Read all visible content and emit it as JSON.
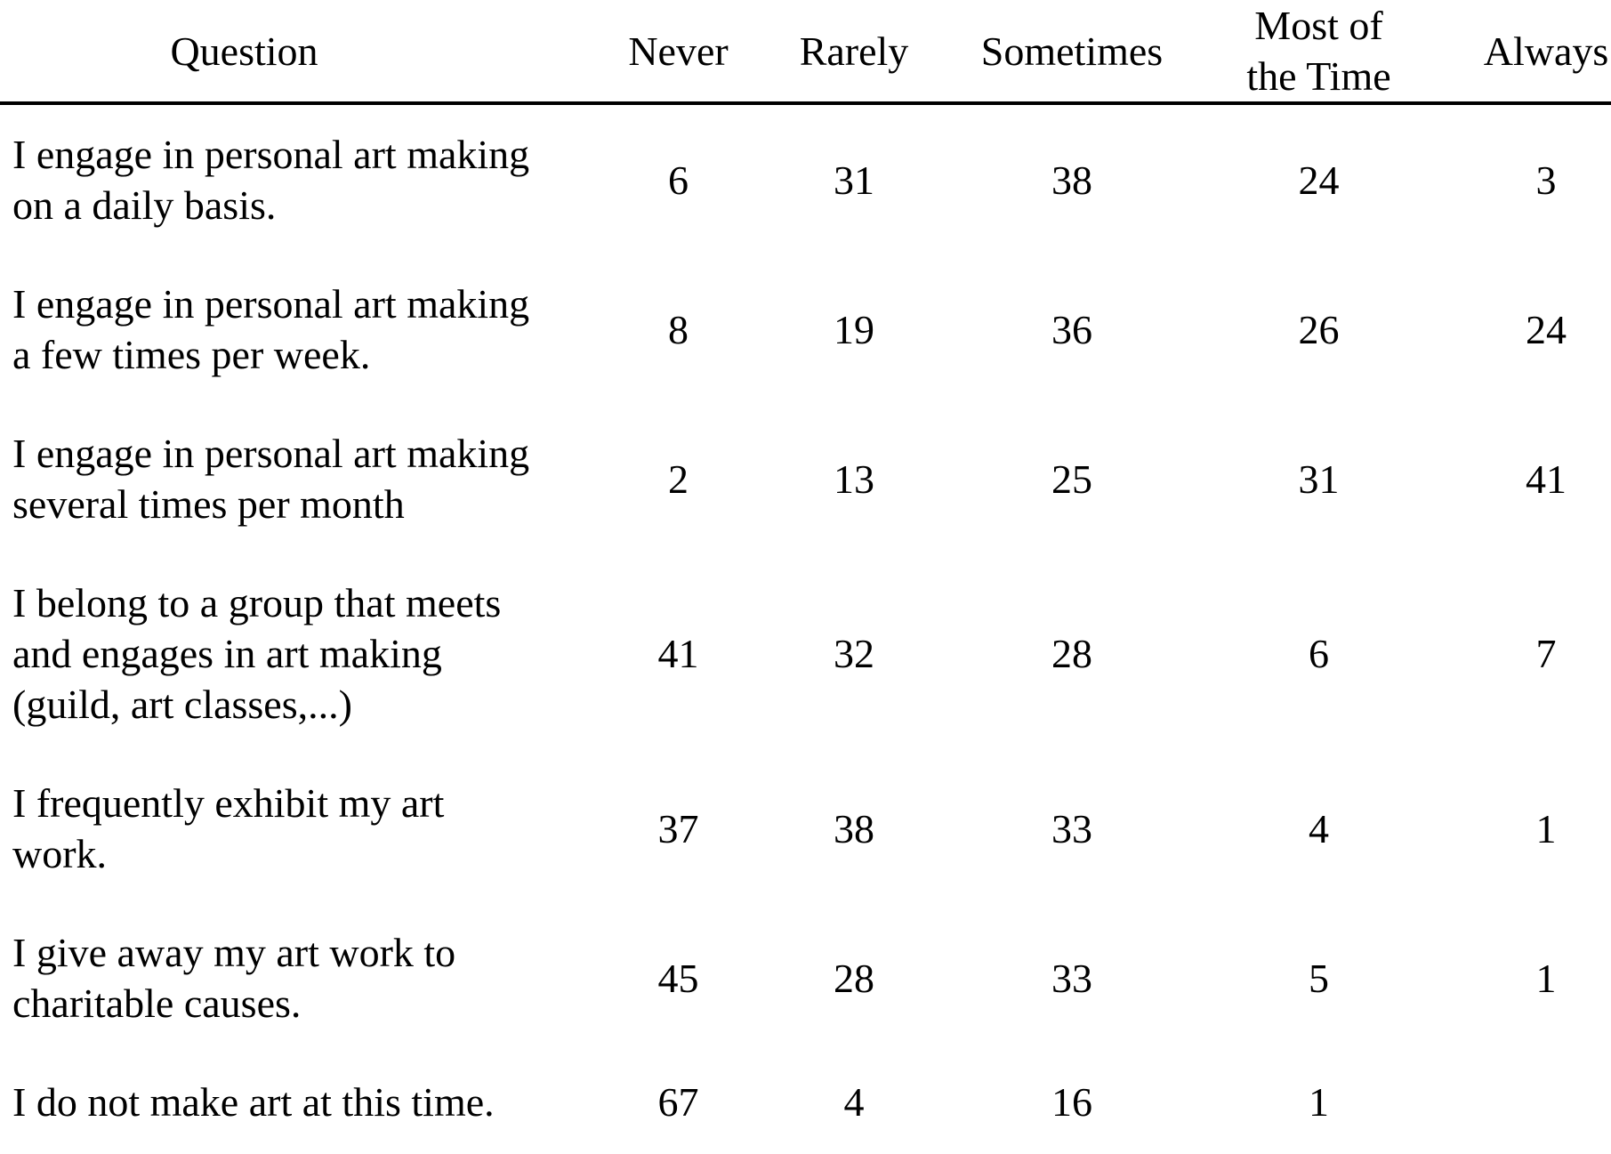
{
  "colors": {
    "background": "#ffffff",
    "text": "#000000",
    "header_rule": "#000000"
  },
  "table": {
    "header": {
      "question": "Question",
      "never": "Never",
      "rarely": "Rarely",
      "sometimes": "Sometimes",
      "most_of_the_time": "Most of\nthe Time",
      "always": "Always"
    },
    "rows": [
      {
        "question": "I engage in personal art making\non a daily basis.",
        "never": "6",
        "rarely": "31",
        "sometimes": "38",
        "most_of_the_time": "24",
        "always": "3"
      },
      {
        "question": "I engage in personal art making\na few times per week.",
        "never": "8",
        "rarely": "19",
        "sometimes": "36",
        "most_of_the_time": "26",
        "always": "24"
      },
      {
        "question": "I engage in personal art making\nseveral times per month",
        "never": "2",
        "rarely": "13",
        "sometimes": "25",
        "most_of_the_time": "31",
        "always": "41"
      },
      {
        "question": "I belong to a group that meets\nand engages in art making\n(guild, art classes,...)",
        "never": "41",
        "rarely": "32",
        "sometimes": "28",
        "most_of_the_time": "6",
        "always": "7"
      },
      {
        "question": "I frequently exhibit my art\nwork.",
        "never": "37",
        "rarely": "38",
        "sometimes": "33",
        "most_of_the_time": "4",
        "always": "1"
      },
      {
        "question": "I give away my art work to\ncharitable causes.",
        "never": "45",
        "rarely": "28",
        "sometimes": "33",
        "most_of_the_time": "5",
        "always": "1"
      },
      {
        "question": "I do not make art at this time.",
        "never": "67",
        "rarely": "4",
        "sometimes": "16",
        "most_of_the_time": "1",
        "always": ""
      }
    ]
  },
  "chart_data": {
    "type": "table",
    "columns": [
      "Question",
      "Never",
      "Rarely",
      "Sometimes",
      "Most of the Time",
      "Always"
    ],
    "rows": [
      {
        "question": "I engage in personal art making on a daily basis.",
        "values": [
          6,
          31,
          38,
          24,
          3
        ]
      },
      {
        "question": "I engage in personal art making a few times per week.",
        "values": [
          8,
          19,
          36,
          26,
          24
        ]
      },
      {
        "question": "I engage in personal art making several times per month",
        "values": [
          2,
          13,
          25,
          31,
          41
        ]
      },
      {
        "question": "I belong to a group that meets and engages in art making (guild, art classes,...)",
        "values": [
          41,
          32,
          28,
          6,
          7
        ]
      },
      {
        "question": "I frequently exhibit my art work.",
        "values": [
          37,
          38,
          33,
          4,
          1
        ]
      },
      {
        "question": "I give away my art work to charitable causes.",
        "values": [
          45,
          28,
          33,
          5,
          1
        ]
      },
      {
        "question": "I do not make art at this time.",
        "values": [
          67,
          4,
          16,
          1,
          null
        ]
      }
    ]
  }
}
